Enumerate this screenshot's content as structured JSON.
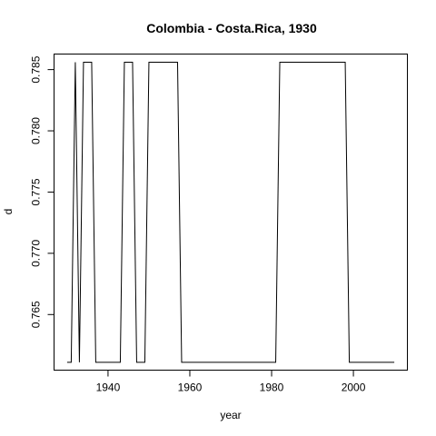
{
  "chart_data": {
    "type": "line",
    "title": "Colombia - Costa.Rica, 1930",
    "xlabel": "year",
    "ylabel": "d",
    "xlim": [
      1926.8,
      2013.2
    ],
    "ylim": [
      0.76046,
      0.78627
    ],
    "x_ticks": [
      1940,
      1960,
      1980,
      2000
    ],
    "y_ticks": [
      0.765,
      0.77,
      0.775,
      0.78,
      0.785
    ],
    "x_tick_labels": [
      "1940",
      "1960",
      "1980",
      "2000"
    ],
    "y_tick_labels": [
      "0.765",
      "0.770",
      "0.775",
      "0.780",
      "0.785"
    ],
    "grid": false,
    "legend": "none",
    "series": [
      {
        "color": "#000000",
        "x": [
          1930,
          1931,
          1932,
          1933,
          1934,
          1935,
          1936,
          1937,
          1938,
          1939,
          1940,
          1941,
          1942,
          1943,
          1944,
          1945,
          1946,
          1947,
          1948,
          1949,
          1950,
          1951,
          1952,
          1953,
          1954,
          1955,
          1956,
          1957,
          1958,
          1959,
          1960,
          1961,
          1962,
          1963,
          1964,
          1965,
          1966,
          1967,
          1968,
          1969,
          1970,
          1971,
          1972,
          1973,
          1974,
          1975,
          1976,
          1977,
          1978,
          1979,
          1980,
          1981,
          1982,
          1983,
          1984,
          1985,
          1986,
          1987,
          1988,
          1989,
          1990,
          1991,
          1992,
          1993,
          1994,
          1995,
          1996,
          1997,
          1998,
          1999,
          2000,
          2001,
          2002,
          2003,
          2004,
          2005,
          2006,
          2007,
          2008,
          2009,
          2010
        ],
        "y": [
          0.7611,
          0.7611,
          0.7856,
          0.7611,
          0.7856,
          0.7856,
          0.7856,
          0.7611,
          0.7611,
          0.7611,
          0.7611,
          0.7611,
          0.7611,
          0.7611,
          0.7856,
          0.7856,
          0.7856,
          0.7611,
          0.7611,
          0.7611,
          0.7856,
          0.7856,
          0.7856,
          0.7856,
          0.7856,
          0.7856,
          0.7856,
          0.7856,
          0.7611,
          0.7611,
          0.7611,
          0.7611,
          0.7611,
          0.7611,
          0.7611,
          0.7611,
          0.7611,
          0.7611,
          0.7611,
          0.7611,
          0.7611,
          0.7611,
          0.7611,
          0.7611,
          0.7611,
          0.7611,
          0.7611,
          0.7611,
          0.7611,
          0.7611,
          0.7611,
          0.7611,
          0.7856,
          0.7856,
          0.7856,
          0.7856,
          0.7856,
          0.7856,
          0.7856,
          0.7856,
          0.7856,
          0.7856,
          0.7856,
          0.7856,
          0.7856,
          0.7856,
          0.7856,
          0.7856,
          0.7856,
          0.7611,
          0.7611,
          0.7611,
          0.7611,
          0.7611,
          0.7611,
          0.7611,
          0.7611,
          0.7611,
          0.7611,
          0.7611,
          0.7611
        ]
      }
    ]
  }
}
